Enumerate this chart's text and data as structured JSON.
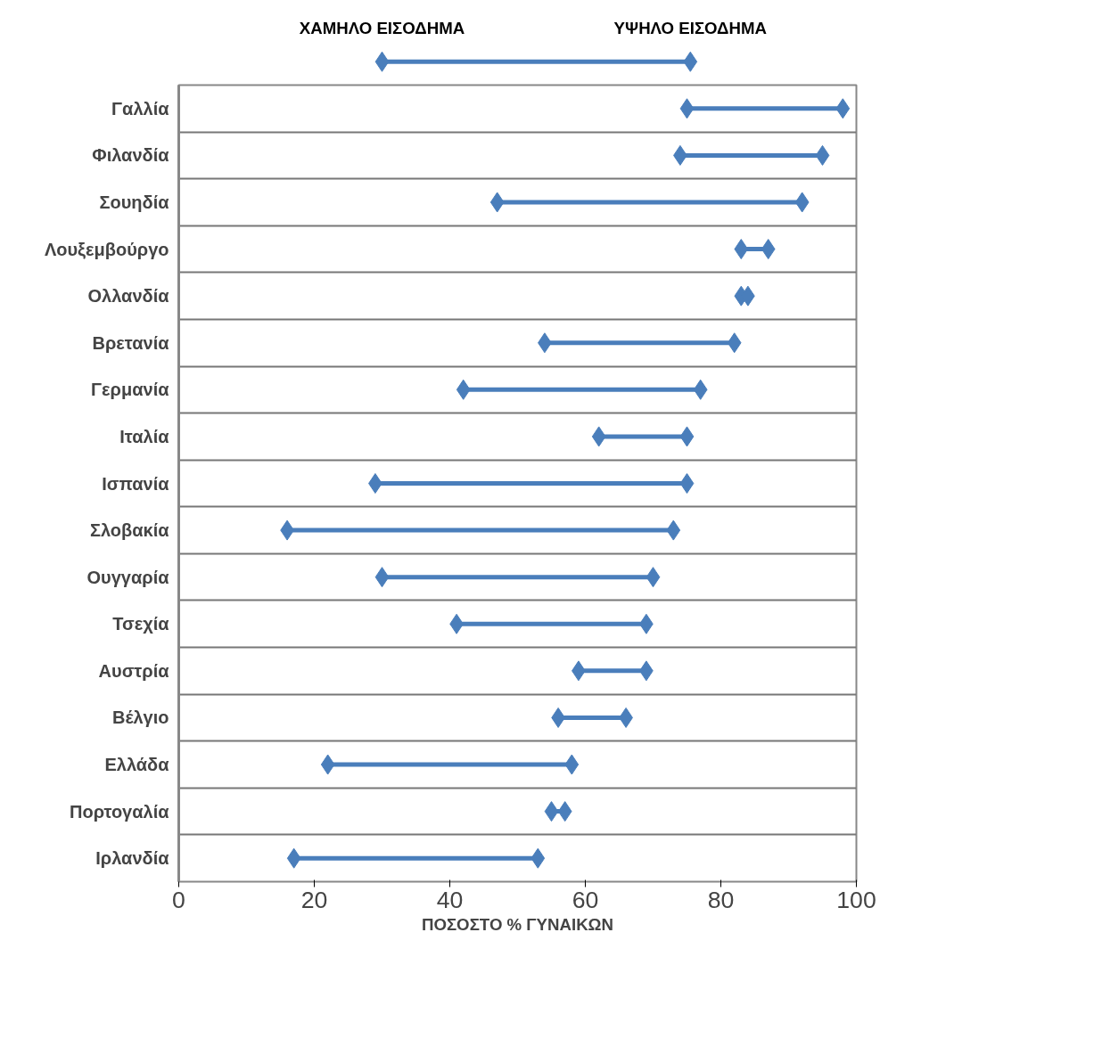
{
  "chart_data": {
    "type": "scatter",
    "xlabel": "ΠΟΣΟΣΤΟ % ΓΥΝΑΙΚΩΝ",
    "categories": [
      "Γαλλία",
      "Φιλανδία",
      "Σουηδία",
      "Λουξεμβούργο",
      "Ολλανδία",
      "Βρετανία",
      "Γερμανία",
      "Ιταλία",
      "Ισπανία",
      "Σλοβακία",
      "Ουγγαρία",
      "Τσεχία",
      "Αυστρία",
      "Βέλγιο",
      "Ελλάδα",
      "Πορτογαλία",
      "Ιρλανδία"
    ],
    "series": [
      {
        "name": "ΧΑΜΗΛΟ ΕΙΣΟΔΗΜΑ",
        "color": "#4a7ebb",
        "values": [
          75,
          74,
          47,
          83,
          83,
          54,
          42,
          62,
          29,
          16,
          30,
          41,
          59,
          56,
          22,
          55,
          17
        ]
      },
      {
        "name": "ΥΨΗΛΟ ΕΙΣΟΔΗΜΑ",
        "color": "#4a7ebb",
        "values": [
          98,
          95,
          92,
          87,
          84,
          82,
          77,
          75,
          75,
          73,
          70,
          69,
          69,
          66,
          58,
          57,
          53
        ]
      }
    ],
    "xlim": [
      0,
      100
    ],
    "xticks": [
      0,
      20,
      40,
      60,
      80,
      100
    ],
    "grid": "y",
    "legend": "top",
    "marker": "diamond",
    "orientation": "horizontal"
  }
}
